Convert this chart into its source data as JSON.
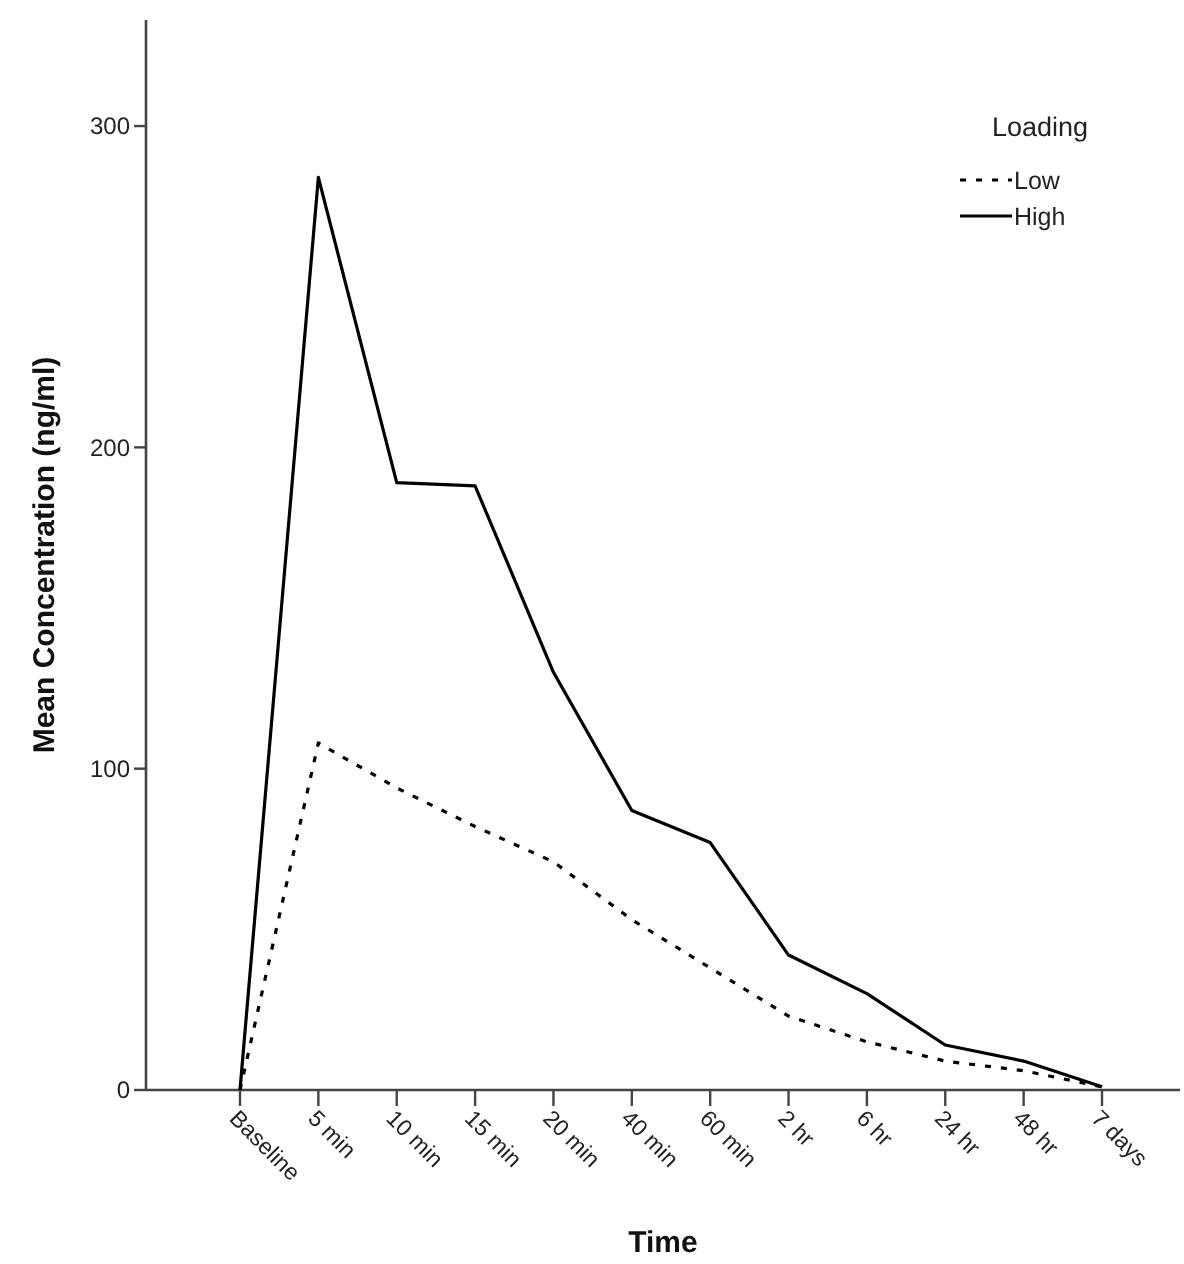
{
  "chart_data": {
    "type": "line",
    "xlabel": "Time",
    "ylabel": "Mean Concentration (ng/ml)",
    "legend_title": "Loading",
    "categories": [
      "Baseline",
      "5 min",
      "10 min",
      "15 min",
      "20 min",
      "40 min",
      "60 min",
      "2 hr",
      "6 hr",
      "24 hr",
      "48 hr",
      "7 days"
    ],
    "series": [
      {
        "name": "Low",
        "color": "#000000",
        "line_style": "dashed",
        "values": [
          0,
          108,
          94,
          82,
          71,
          53,
          38,
          23,
          15,
          9,
          6,
          1
        ]
      },
      {
        "name": "High",
        "color": "#000000",
        "line_style": "solid",
        "values": [
          0,
          284,
          189,
          188,
          130,
          87,
          77,
          42,
          30,
          14,
          9,
          1
        ]
      }
    ],
    "ylim": [
      0,
      333
    ],
    "yticks": [
      0,
      100,
      200,
      300
    ],
    "legend": "top right",
    "grid": false
  }
}
